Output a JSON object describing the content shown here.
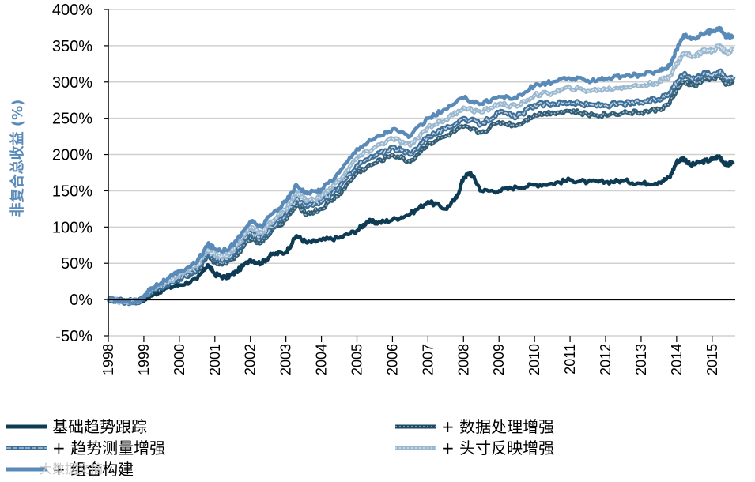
{
  "chart_data": {
    "type": "line",
    "title": "",
    "xlabel": "",
    "ylabel": "非复合总收益 (%)",
    "xlim": [
      1998,
      2015.65
    ],
    "ylim": [
      -50,
      400
    ],
    "y_ticks": [
      -50,
      0,
      50,
      100,
      150,
      200,
      250,
      300,
      350,
      400
    ],
    "y_tick_labels": [
      "-50%",
      "0%",
      "50%",
      "100%",
      "150%",
      "200%",
      "250%",
      "300%",
      "350%",
      "400%"
    ],
    "x_ticks": [
      1998,
      1999,
      2000,
      2001,
      2002,
      2003,
      2004,
      2005,
      2006,
      2007,
      2008,
      2009,
      2010,
      2011,
      2012,
      2013,
      2014,
      2015
    ],
    "x_tick_labels": [
      "1998",
      "1999",
      "2000",
      "2001",
      "2002",
      "2003",
      "2004",
      "2005",
      "2006",
      "2007",
      "2008",
      "2009",
      "2010",
      "2011",
      "2012",
      "2013",
      "2014",
      "2015"
    ],
    "grid": true,
    "legend_position": "bottom",
    "series": [
      {
        "name": "基础趋势跟踪",
        "color": "#0e3b54",
        "style": "solid",
        "x": [
          1998,
          1998.5,
          1998.9,
          1999.2,
          1999.6,
          2000,
          2000.5,
          2000.8,
          2001,
          2001.3,
          2001.6,
          2002,
          2002.3,
          2002.6,
          2003,
          2003.3,
          2003.6,
          2004,
          2004.5,
          2005,
          2005.3,
          2005.6,
          2006,
          2006.5,
          2007,
          2007.5,
          2007.8,
          2008,
          2008.2,
          2008.5,
          2009,
          2009.5,
          2010,
          2010.5,
          2011,
          2011.5,
          2012,
          2012.5,
          2013,
          2013.5,
          2013.8,
          2014,
          2014.2,
          2014.4,
          2014.7,
          2015,
          2015.2,
          2015.4,
          2015.6
        ],
        "values": [
          0,
          -3,
          -2,
          5,
          15,
          20,
          28,
          48,
          35,
          30,
          38,
          55,
          50,
          62,
          65,
          88,
          78,
          82,
          85,
          95,
          108,
          106,
          110,
          118,
          135,
          125,
          140,
          168,
          175,
          150,
          150,
          155,
          158,
          160,
          165,
          162,
          162,
          164,
          160,
          162,
          168,
          190,
          195,
          185,
          190,
          193,
          198,
          185,
          190
        ]
      },
      {
        "name": "+ 数据处理增强",
        "color": "#1a4a66",
        "style": "dotted",
        "x": [
          1998,
          1998.5,
          1998.9,
          1999.2,
          1999.6,
          2000,
          2000.5,
          2000.8,
          2001,
          2001.3,
          2001.6,
          2002,
          2002.3,
          2002.6,
          2003,
          2003.3,
          2003.6,
          2004,
          2004.5,
          2005,
          2005.5,
          2006,
          2006.5,
          2007,
          2007.5,
          2008,
          2008.5,
          2009,
          2009.5,
          2010,
          2010.5,
          2011,
          2011.5,
          2012,
          2012.5,
          2013,
          2013.5,
          2013.8,
          2014,
          2014.2,
          2014.5,
          2014.8,
          2015,
          2015.2,
          2015.4,
          2015.6
        ],
        "values": [
          0,
          -3,
          -2,
          10,
          18,
          28,
          38,
          62,
          52,
          50,
          60,
          85,
          78,
          95,
          110,
          130,
          118,
          125,
          145,
          175,
          188,
          200,
          190,
          215,
          225,
          238,
          230,
          245,
          240,
          255,
          258,
          260,
          255,
          255,
          258,
          258,
          262,
          270,
          290,
          300,
          295,
          305,
          305,
          308,
          298,
          300
        ]
      },
      {
        "name": "+ 趋势测量增强",
        "color": "#3e6f98",
        "style": "double",
        "x": [
          1998,
          1998.5,
          1998.9,
          1999.2,
          1999.6,
          2000,
          2000.5,
          2000.8,
          2001,
          2001.3,
          2001.6,
          2002,
          2002.3,
          2002.6,
          2003,
          2003.3,
          2003.6,
          2004,
          2004.5,
          2005,
          2005.5,
          2006,
          2006.5,
          2007,
          2007.5,
          2008,
          2008.5,
          2009,
          2009.5,
          2010,
          2010.5,
          2011,
          2011.5,
          2012,
          2012.5,
          2013,
          2013.5,
          2013.8,
          2014,
          2014.2,
          2014.5,
          2014.8,
          2015,
          2015.2,
          2015.4,
          2015.6
        ],
        "values": [
          0,
          -3,
          -2,
          12,
          20,
          30,
          42,
          65,
          58,
          56,
          68,
          92,
          85,
          100,
          118,
          138,
          128,
          135,
          155,
          185,
          198,
          210,
          200,
          225,
          235,
          250,
          242,
          258,
          252,
          268,
          270,
          272,
          268,
          268,
          270,
          272,
          276,
          285,
          300,
          310,
          305,
          312,
          310,
          315,
          305,
          308
        ]
      },
      {
        "name": "+ 头寸反映增强",
        "color": "#9ab8d0",
        "style": "dashed",
        "x": [
          1998,
          1998.5,
          1998.9,
          1999.2,
          1999.6,
          2000,
          2000.5,
          2000.8,
          2001,
          2001.3,
          2001.6,
          2002,
          2002.3,
          2002.6,
          2003,
          2003.3,
          2003.6,
          2004,
          2004.5,
          2005,
          2005.5,
          2006,
          2006.5,
          2007,
          2007.5,
          2008,
          2008.5,
          2009,
          2009.5,
          2010,
          2010.5,
          2011,
          2011.5,
          2012,
          2012.5,
          2013,
          2013.5,
          2013.8,
          2014,
          2014.2,
          2014.5,
          2014.8,
          2015,
          2015.2,
          2015.4,
          2015.6
        ],
        "values": [
          0,
          -3,
          -2,
          14,
          22,
          34,
          46,
          70,
          62,
          60,
          74,
          100,
          92,
          108,
          125,
          148,
          136,
          142,
          165,
          195,
          210,
          222,
          212,
          238,
          248,
          265,
          258,
          270,
          266,
          282,
          285,
          292,
          288,
          290,
          293,
          295,
          300,
          308,
          325,
          340,
          335,
          345,
          342,
          350,
          340,
          345
        ]
      },
      {
        "name": "+ 组合构建",
        "color": "#5a8ab8",
        "style": "solid",
        "x": [
          1998,
          1998.5,
          1998.9,
          1999.2,
          1999.6,
          2000,
          2000.5,
          2000.8,
          2001,
          2001.3,
          2001.6,
          2002,
          2002.3,
          2002.6,
          2003,
          2003.3,
          2003.6,
          2004,
          2004.5,
          2005,
          2005.5,
          2006,
          2006.5,
          2007,
          2007.5,
          2008,
          2008.5,
          2009,
          2009.5,
          2010,
          2010.5,
          2011,
          2011.5,
          2012,
          2012.5,
          2013,
          2013.5,
          2013.8,
          2014,
          2014.2,
          2014.5,
          2014.8,
          2015,
          2015.2,
          2015.4,
          2015.6
        ],
        "values": [
          0,
          -3,
          -2,
          16,
          26,
          38,
          52,
          76,
          70,
          68,
          80,
          108,
          100,
          118,
          135,
          158,
          146,
          152,
          175,
          208,
          222,
          235,
          225,
          250,
          262,
          278,
          270,
          280,
          278,
          295,
          300,
          305,
          302,
          305,
          308,
          310,
          315,
          322,
          345,
          365,
          360,
          368,
          370,
          375,
          362,
          365
        ]
      }
    ]
  },
  "watermark": "大数据文摘"
}
